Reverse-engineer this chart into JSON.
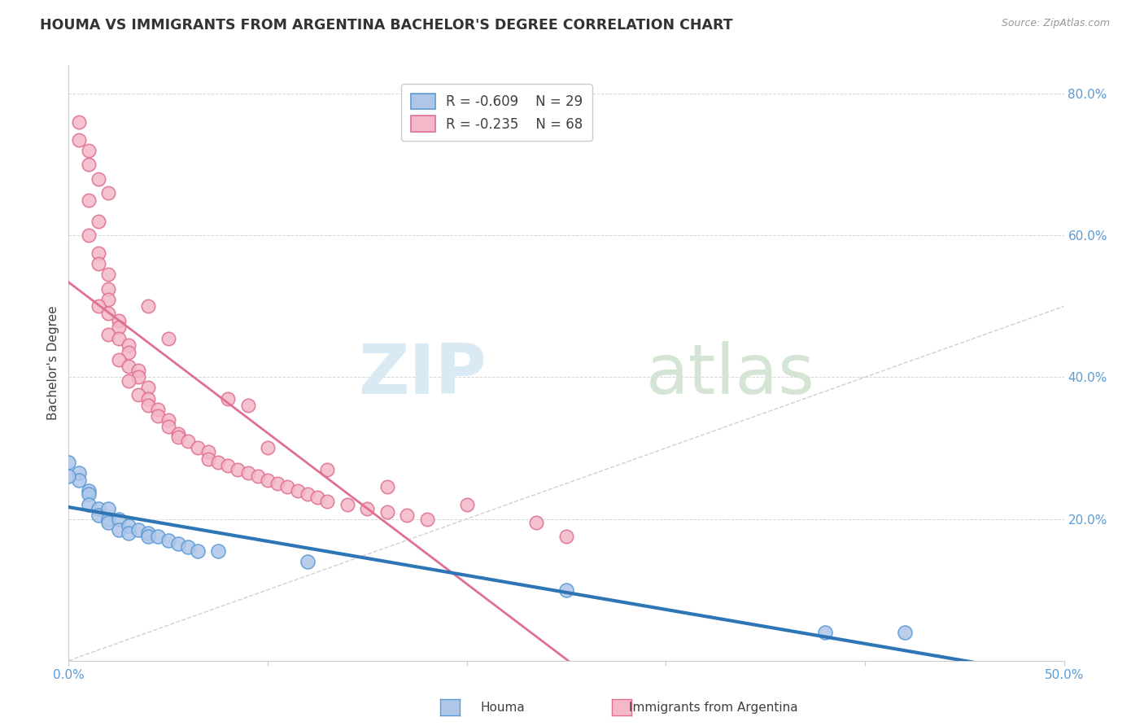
{
  "title": "HOUMA VS IMMIGRANTS FROM ARGENTINA BACHELOR'S DEGREE CORRELATION CHART",
  "source": "Source: ZipAtlas.com",
  "ylabel": "Bachelor's Degree",
  "xlim": [
    0.0,
    0.5
  ],
  "ylim": [
    0.0,
    0.84
  ],
  "houma_color": "#aec6e8",
  "houma_edge": "#5b9bd5",
  "arg_color": "#f4b8c8",
  "arg_edge": "#e07090",
  "houma_line_color": "#2e75b6",
  "arg_line_color": "#e07090",
  "diag_line_color": "#d0d0d0",
  "background": "#ffffff",
  "tick_color": "#5b9bd5",
  "houma_points": [
    [
      0.0,
      0.28
    ],
    [
      0.005,
      0.265
    ],
    [
      0.005,
      0.255
    ],
    [
      0.01,
      0.24
    ],
    [
      0.01,
      0.235
    ],
    [
      0.01,
      0.22
    ],
    [
      0.015,
      0.215
    ],
    [
      0.015,
      0.205
    ],
    [
      0.02,
      0.215
    ],
    [
      0.02,
      0.2
    ],
    [
      0.02,
      0.195
    ],
    [
      0.025,
      0.2
    ],
    [
      0.025,
      0.185
    ],
    [
      0.03,
      0.19
    ],
    [
      0.03,
      0.18
    ],
    [
      0.035,
      0.185
    ],
    [
      0.04,
      0.18
    ],
    [
      0.04,
      0.175
    ],
    [
      0.045,
      0.175
    ],
    [
      0.05,
      0.17
    ],
    [
      0.055,
      0.165
    ],
    [
      0.06,
      0.16
    ],
    [
      0.065,
      0.155
    ],
    [
      0.075,
      0.155
    ],
    [
      0.0,
      0.26
    ],
    [
      0.12,
      0.14
    ],
    [
      0.25,
      0.1
    ],
    [
      0.38,
      0.04
    ],
    [
      0.42,
      0.04
    ]
  ],
  "arg_points": [
    [
      0.005,
      0.735
    ],
    [
      0.01,
      0.7
    ],
    [
      0.01,
      0.65
    ],
    [
      0.015,
      0.62
    ],
    [
      0.01,
      0.6
    ],
    [
      0.015,
      0.575
    ],
    [
      0.015,
      0.56
    ],
    [
      0.02,
      0.545
    ],
    [
      0.02,
      0.525
    ],
    [
      0.02,
      0.51
    ],
    [
      0.015,
      0.5
    ],
    [
      0.02,
      0.49
    ],
    [
      0.025,
      0.48
    ],
    [
      0.025,
      0.47
    ],
    [
      0.02,
      0.46
    ],
    [
      0.025,
      0.455
    ],
    [
      0.03,
      0.445
    ],
    [
      0.03,
      0.435
    ],
    [
      0.025,
      0.425
    ],
    [
      0.03,
      0.415
    ],
    [
      0.035,
      0.41
    ],
    [
      0.035,
      0.4
    ],
    [
      0.03,
      0.395
    ],
    [
      0.04,
      0.385
    ],
    [
      0.035,
      0.375
    ],
    [
      0.04,
      0.37
    ],
    [
      0.04,
      0.36
    ],
    [
      0.045,
      0.355
    ],
    [
      0.045,
      0.345
    ],
    [
      0.05,
      0.34
    ],
    [
      0.05,
      0.33
    ],
    [
      0.055,
      0.32
    ],
    [
      0.055,
      0.315
    ],
    [
      0.06,
      0.31
    ],
    [
      0.065,
      0.3
    ],
    [
      0.07,
      0.295
    ],
    [
      0.07,
      0.285
    ],
    [
      0.075,
      0.28
    ],
    [
      0.08,
      0.275
    ],
    [
      0.085,
      0.27
    ],
    [
      0.09,
      0.265
    ],
    [
      0.095,
      0.26
    ],
    [
      0.1,
      0.255
    ],
    [
      0.105,
      0.25
    ],
    [
      0.11,
      0.245
    ],
    [
      0.115,
      0.24
    ],
    [
      0.12,
      0.235
    ],
    [
      0.125,
      0.23
    ],
    [
      0.13,
      0.225
    ],
    [
      0.14,
      0.22
    ],
    [
      0.15,
      0.215
    ],
    [
      0.16,
      0.21
    ],
    [
      0.17,
      0.205
    ],
    [
      0.18,
      0.2
    ],
    [
      0.005,
      0.76
    ],
    [
      0.01,
      0.72
    ],
    [
      0.015,
      0.68
    ],
    [
      0.02,
      0.66
    ],
    [
      0.04,
      0.5
    ],
    [
      0.05,
      0.455
    ],
    [
      0.08,
      0.37
    ],
    [
      0.09,
      0.36
    ],
    [
      0.1,
      0.3
    ],
    [
      0.13,
      0.27
    ],
    [
      0.16,
      0.245
    ],
    [
      0.2,
      0.22
    ],
    [
      0.235,
      0.195
    ],
    [
      0.25,
      0.175
    ]
  ]
}
